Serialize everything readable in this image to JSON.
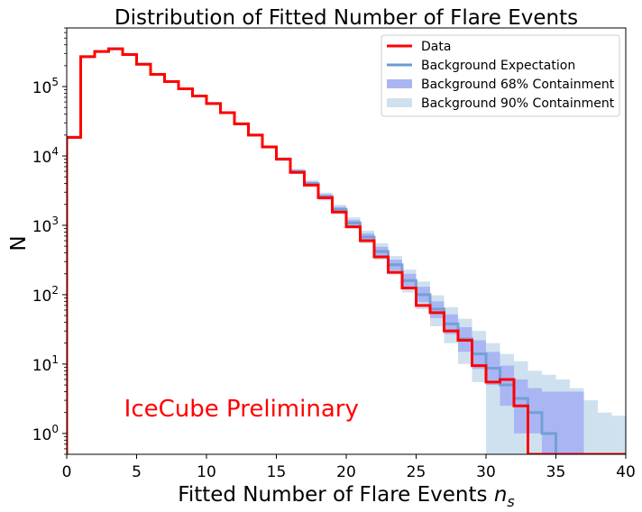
{
  "chart_data": {
    "type": "histogram",
    "title": "Distribution of Fitted Number of Flare Events",
    "xlabel": "Fitted Number of Flare Events ",
    "xlabel_math": "n",
    "xlabel_sub": "s",
    "ylabel": "N",
    "xlim": [
      0,
      40
    ],
    "ylim": [
      0.5,
      700000
    ],
    "yscale": "log",
    "x_ticks": [
      0,
      5,
      10,
      15,
      20,
      25,
      30,
      35,
      40
    ],
    "y_ticks": [
      {
        "value": 1,
        "base": "10",
        "exp": "0"
      },
      {
        "value": 10,
        "base": "10",
        "exp": "1"
      },
      {
        "value": 100,
        "base": "10",
        "exp": "2"
      },
      {
        "value": 1000,
        "base": "10",
        "exp": "3"
      },
      {
        "value": 10000,
        "base": "10",
        "exp": "4"
      },
      {
        "value": 100000,
        "base": "10",
        "exp": "5"
      }
    ],
    "bin_edges": [
      0,
      1,
      2,
      3,
      4,
      5,
      6,
      7,
      8,
      9,
      10,
      11,
      12,
      13,
      14,
      15,
      16,
      17,
      18,
      19,
      20,
      21,
      22,
      23,
      24,
      25,
      26,
      27,
      28,
      29,
      30,
      31,
      32,
      33,
      34,
      35,
      36,
      37,
      38,
      39,
      40
    ],
    "series": [
      {
        "name": "Data",
        "style": "step",
        "color": "#ff0000",
        "values": [
          18500,
          270000,
          320000,
          350000,
          290000,
          210000,
          150000,
          118000,
          93000,
          73000,
          57000,
          42000,
          29000,
          20000,
          13500,
          9000,
          5800,
          3800,
          2500,
          1550,
          950,
          600,
          350,
          210,
          125,
          70,
          55,
          30,
          22,
          9.5,
          5.5,
          6,
          2.5,
          0,
          0,
          0,
          0,
          0,
          0,
          0
        ]
      },
      {
        "name": "Background Expectation",
        "style": "step",
        "color": "#6a9bd1",
        "values": [
          18500,
          270000,
          320000,
          350000,
          290000,
          210000,
          150000,
          118000,
          93000,
          73000,
          57000,
          42000,
          29000,
          20000,
          13500,
          9000,
          6000,
          4000,
          2600,
          1700,
          1080,
          680,
          420,
          270,
          160,
          100,
          62,
          38,
          23,
          14,
          8.7,
          5,
          3.2,
          2,
          1,
          0,
          0,
          0,
          0,
          0
        ]
      },
      {
        "name": "Background 68% Containment",
        "style": "band",
        "color": "#aab6f3",
        "lower": [
          18000,
          265000,
          315000,
          345000,
          285000,
          206000,
          147000,
          115000,
          91000,
          71000,
          55500,
          41000,
          28300,
          19500,
          13100,
          8700,
          5700,
          3750,
          2400,
          1550,
          970,
          600,
          360,
          225,
          130,
          78,
          46,
          27,
          15,
          8.5,
          5,
          2.5,
          1,
          1,
          0.5,
          0.5,
          0.5,
          0,
          0,
          0
        ],
        "upper": [
          19000,
          275000,
          325000,
          355000,
          295000,
          214000,
          153000,
          121000,
          95000,
          75000,
          58500,
          43000,
          29700,
          20500,
          13900,
          9300,
          6300,
          4250,
          2800,
          1850,
          1200,
          770,
          490,
          320,
          200,
          130,
          80,
          52,
          34,
          22,
          15,
          9.5,
          6,
          4.5,
          4,
          4,
          4,
          0,
          0,
          0
        ]
      },
      {
        "name": "Background 90% Containment",
        "style": "band",
        "color": "#cfe1ee",
        "lower": [
          17500,
          262000,
          312000,
          340000,
          281000,
          203000,
          145000,
          113000,
          89500,
          70000,
          54500,
          40200,
          27700,
          19000,
          12800,
          8400,
          5500,
          3600,
          2280,
          1450,
          900,
          550,
          320,
          195,
          108,
          62,
          35,
          20,
          10,
          5.5,
          0.5,
          0.5,
          0.5,
          0.5,
          0.5,
          0.5,
          0.5,
          0.5,
          0.5,
          0.5
        ],
        "upper": [
          19500,
          278000,
          328000,
          360000,
          299000,
          217000,
          155000,
          123000,
          97000,
          76500,
          59500,
          44000,
          30300,
          21000,
          14200,
          9600,
          6500,
          4450,
          2950,
          1980,
          1300,
          840,
          550,
          360,
          230,
          155,
          98,
          66,
          45,
          30,
          20,
          14,
          11,
          8,
          7,
          6,
          4.5,
          3,
          2,
          1.8
        ]
      }
    ],
    "legend": {
      "position": "top-right",
      "entries": [
        "Data",
        "Background Expectation",
        "Background 68% Containment",
        "Background 90% Containment"
      ]
    },
    "annotation": {
      "text": "IceCube Preliminary",
      "color": "#ff0000",
      "x": 12.5,
      "y": 2.3
    },
    "grid": false
  }
}
